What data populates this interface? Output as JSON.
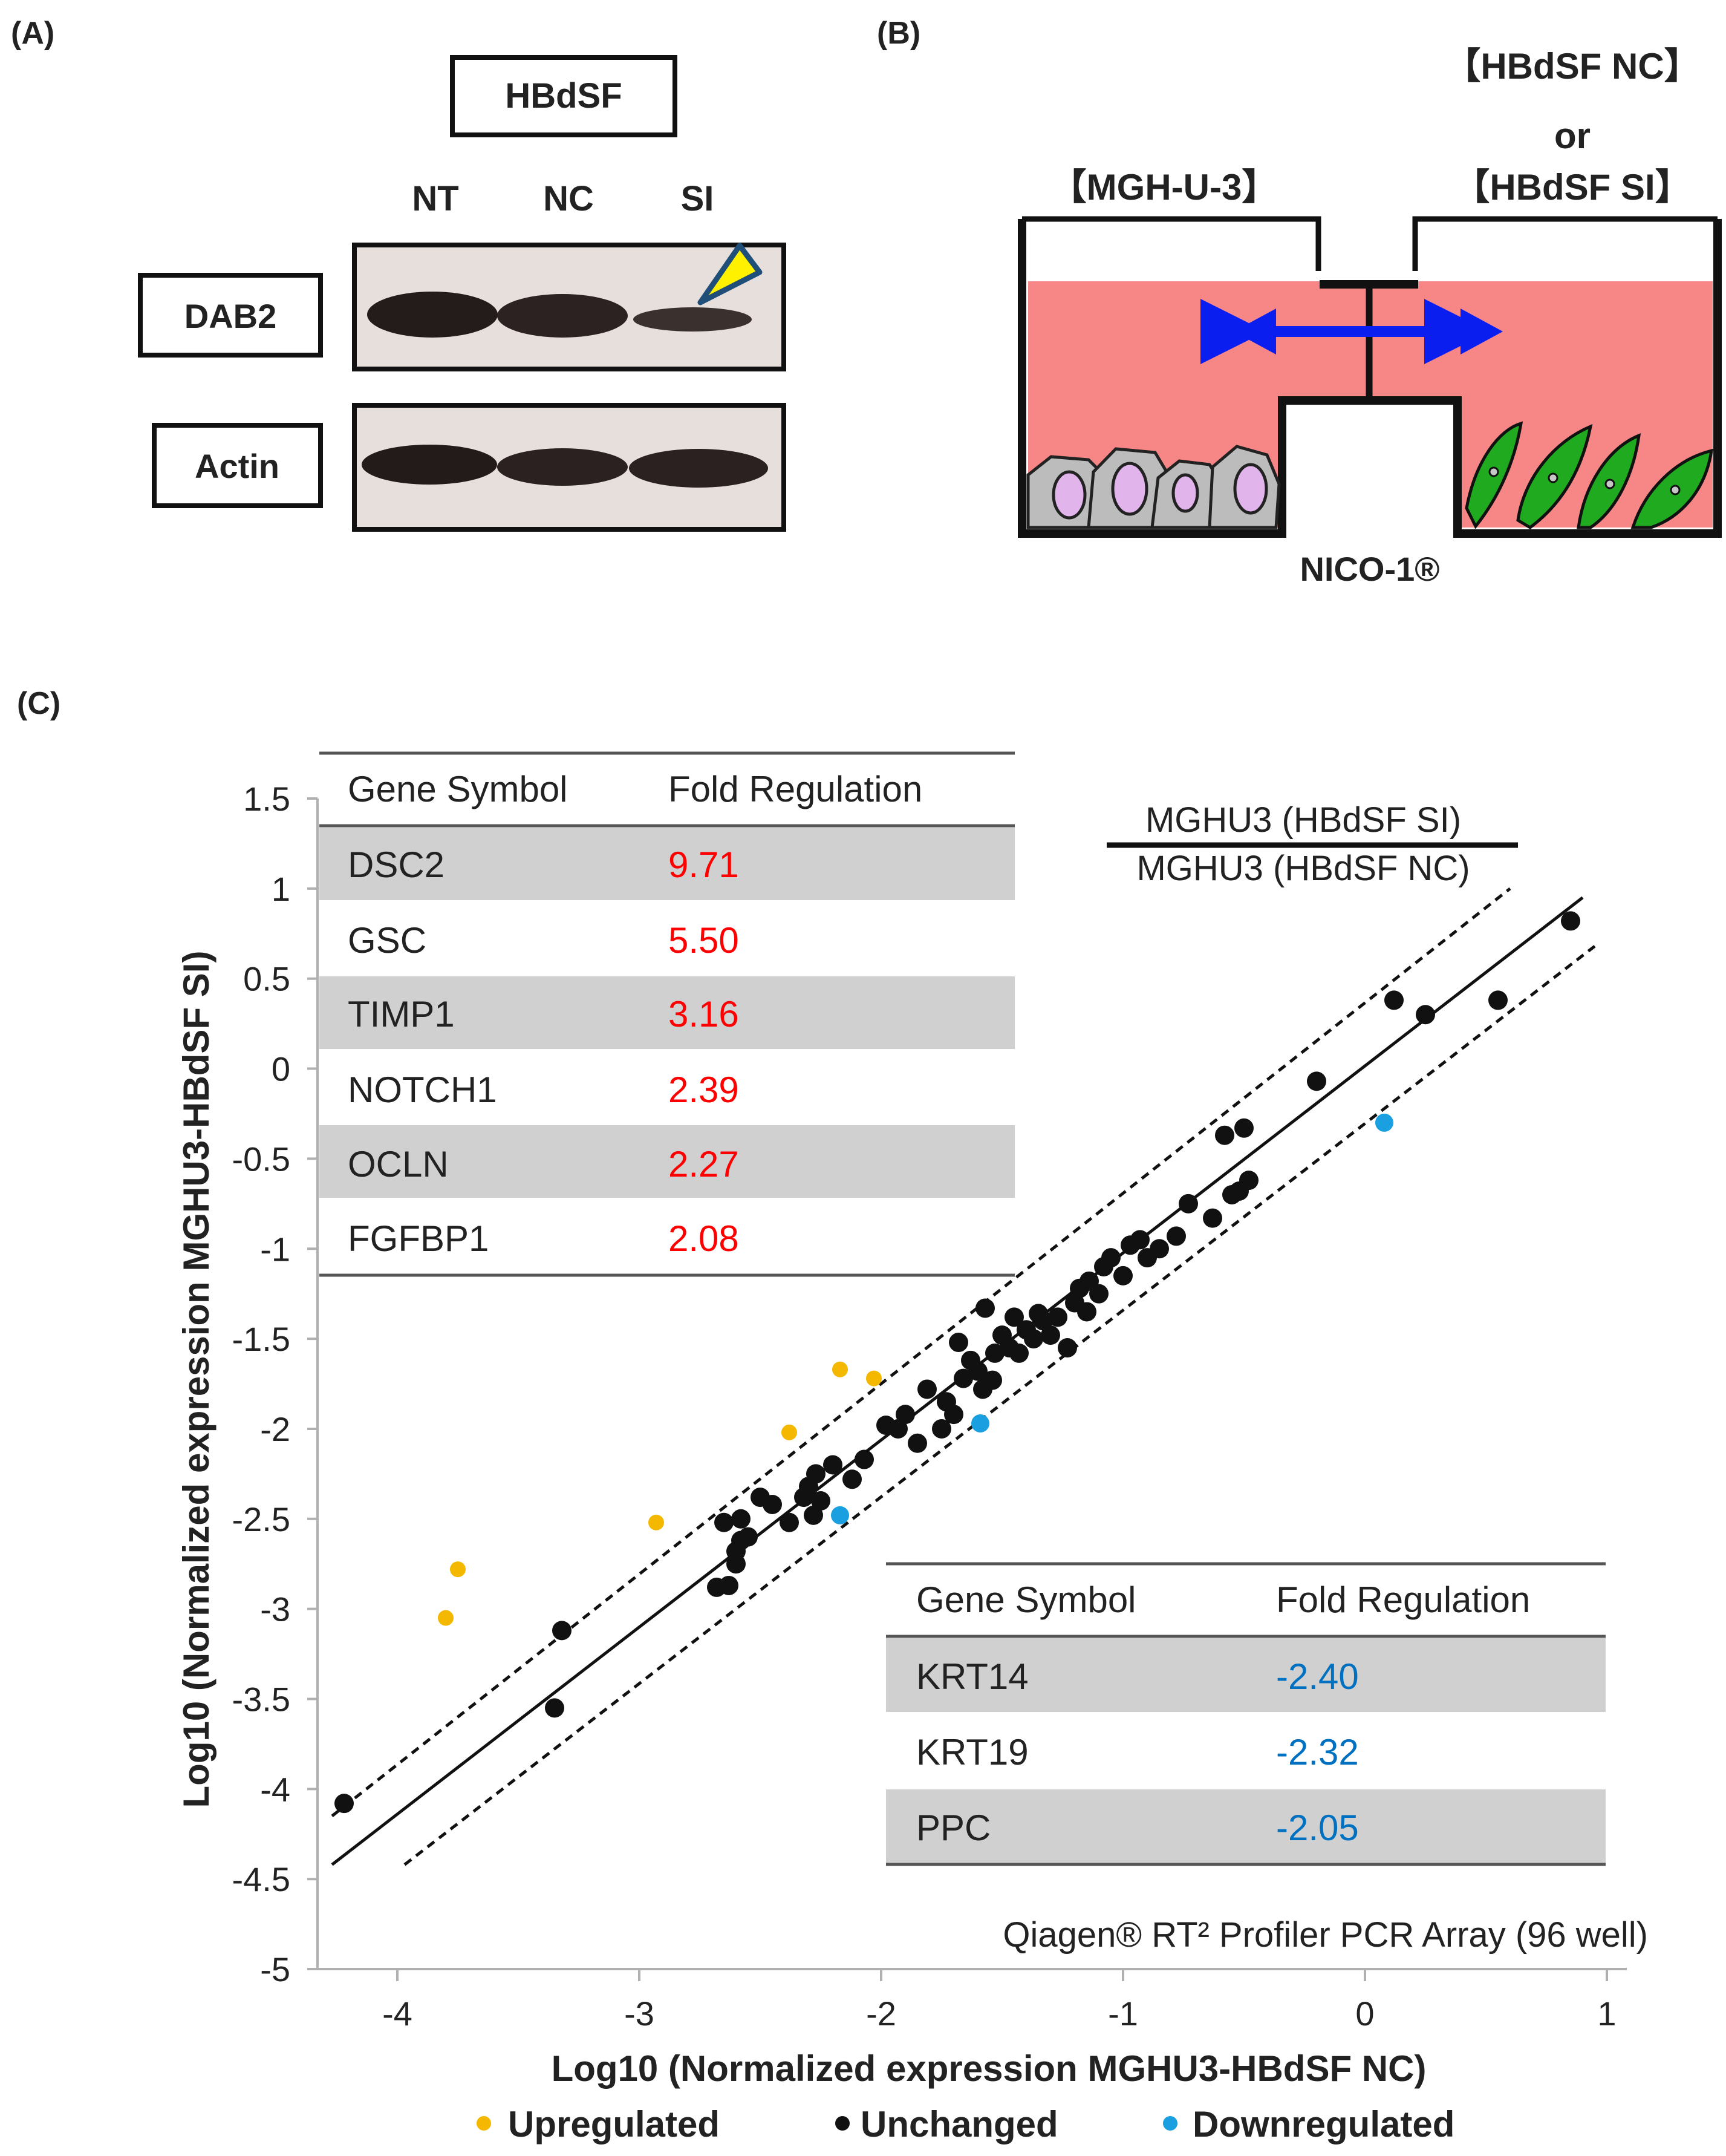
{
  "panel_a": {
    "label": "(A)",
    "cell_line": "HBdSF",
    "lanes": [
      "NT",
      "NC",
      "SI"
    ],
    "blot_dab2_label": "DAB2",
    "blot_actin_label": "Actin"
  },
  "panel_b": {
    "label": "(B)",
    "left_chamber_label": "【MGH-U-3】",
    "right_chamber_label_top": "【HBdSF NC】",
    "right_chamber_label_or": "or",
    "right_chamber_label_bottom": "【HBdSF SI】",
    "device_label": "NICO-1®",
    "colors": {
      "medium": "#f78787",
      "arrow": "#0a1ef0",
      "left_cells": "#bcbcbc",
      "left_nuclei": "#e2b4ec",
      "right_cells": "#1faa1f"
    }
  },
  "panel_c": {
    "label": "(C)",
    "ratio_numerator": "MGHU3 (HBdSF SI)",
    "ratio_denominator": "MGHU3 (HBdSF NC)",
    "array_note": "Qiagen® RT² Profiler PCR Array (96 well)",
    "up_table": {
      "header_gene": "Gene Symbol",
      "header_fold": "Fold Regulation",
      "rows": [
        {
          "gene": "DSC2",
          "fold": "9.71"
        },
        {
          "gene": "GSC",
          "fold": "5.50"
        },
        {
          "gene": "TIMP1",
          "fold": "3.16"
        },
        {
          "gene": "NOTCH1",
          "fold": "2.39"
        },
        {
          "gene": "OCLN",
          "fold": "2.27"
        },
        {
          "gene": "FGFBP1",
          "fold": "2.08"
        }
      ]
    },
    "down_table": {
      "header_gene": "Gene Symbol",
      "header_fold": "Fold Regulation",
      "rows": [
        {
          "gene": "KRT14",
          "fold": "-2.40"
        },
        {
          "gene": "KRT19",
          "fold": "-2.32"
        },
        {
          "gene": "PPC",
          "fold": "-2.05"
        }
      ]
    },
    "colors": {
      "up": "#f5b800",
      "unchanged": "#111111",
      "down": "#1aa0e0",
      "up_text": "#ff0000",
      "down_text": "#0070c0",
      "row_shade": "#d0d0d0"
    }
  },
  "chart_data": {
    "type": "scatter",
    "title": "",
    "xlabel": "Log10 (Normalized expression MGHU3-HBdSF  NC)",
    "ylabel": "Log10 (Normalized expression MGHU3-HBdSF  SI)",
    "xlim": [
      -4.4,
      1.0
    ],
    "ylim": [
      -5.0,
      1.5
    ],
    "x_ticks": [
      -4,
      -3,
      -2,
      -1,
      0,
      1
    ],
    "x_tick_labels": [
      "-4",
      "-3",
      "-2",
      "-1",
      "0",
      "1"
    ],
    "y_ticks": [
      1.5,
      1,
      0.5,
      0,
      -0.5,
      -1,
      -1.5,
      -2,
      -2.5,
      -3,
      -3.5,
      -4,
      -4.5,
      -5
    ],
    "y_tick_labels": [
      "1.5",
      "1",
      "0.5",
      "0",
      "-0.5",
      "-1",
      "-1.5",
      "-2",
      "-2.5",
      "-3",
      "-3.5",
      "-4",
      "-4.5",
      "-5"
    ],
    "legend_position": "bottom",
    "reference_lines": [
      {
        "name": "equal-expression",
        "style": "solid",
        "x": [
          -4.27,
          0.9
        ],
        "y": [
          -4.42,
          0.95
        ]
      },
      {
        "name": "upper-threshold",
        "style": "dashed",
        "x": [
          -4.27,
          0.6
        ],
        "y": [
          -4.15,
          1.0
        ]
      },
      {
        "name": "lower-threshold",
        "style": "dashed",
        "x": [
          -3.97,
          0.95
        ],
        "y": [
          -4.42,
          0.68
        ]
      }
    ],
    "series": [
      {
        "name": "Upregulated",
        "points": [
          [
            -3.8,
            -3.05
          ],
          [
            -3.75,
            -2.78
          ],
          [
            -2.93,
            -2.52
          ],
          [
            -2.38,
            -2.02
          ],
          [
            -2.17,
            -1.67
          ],
          [
            -2.03,
            -1.72
          ]
        ]
      },
      {
        "name": "Unchanged",
        "points": [
          [
            -4.22,
            -4.08
          ],
          [
            -3.32,
            -3.12
          ],
          [
            -3.35,
            -3.55
          ],
          [
            -2.68,
            -2.88
          ],
          [
            -2.63,
            -2.87
          ],
          [
            -2.6,
            -2.75
          ],
          [
            -2.6,
            -2.68
          ],
          [
            -2.58,
            -2.62
          ],
          [
            -2.65,
            -2.52
          ],
          [
            -2.58,
            -2.5
          ],
          [
            -2.55,
            -2.6
          ],
          [
            -2.5,
            -2.38
          ],
          [
            -2.45,
            -2.42
          ],
          [
            -2.38,
            -2.52
          ],
          [
            -2.32,
            -2.38
          ],
          [
            -2.28,
            -2.48
          ],
          [
            -2.25,
            -2.4
          ],
          [
            -2.3,
            -2.32
          ],
          [
            -2.27,
            -2.25
          ],
          [
            -2.2,
            -2.2
          ],
          [
            -2.12,
            -2.28
          ],
          [
            -2.07,
            -2.17
          ],
          [
            -1.98,
            -1.98
          ],
          [
            -1.93,
            -2.0
          ],
          [
            -1.9,
            -1.92
          ],
          [
            -1.85,
            -2.08
          ],
          [
            -1.81,
            -1.78
          ],
          [
            -1.75,
            -2.0
          ],
          [
            -1.73,
            -1.85
          ],
          [
            -1.7,
            -1.92
          ],
          [
            -1.66,
            -1.72
          ],
          [
            -1.63,
            -1.62
          ],
          [
            -1.6,
            -1.68
          ],
          [
            -1.58,
            -1.78
          ],
          [
            -1.54,
            -1.73
          ],
          [
            -1.53,
            -1.58
          ],
          [
            -1.5,
            -1.48
          ],
          [
            -1.47,
            -1.55
          ],
          [
            -1.43,
            -1.58
          ],
          [
            -1.4,
            -1.45
          ],
          [
            -1.37,
            -1.5
          ],
          [
            -1.33,
            -1.4
          ],
          [
            -1.3,
            -1.48
          ],
          [
            -1.27,
            -1.38
          ],
          [
            -1.23,
            -1.55
          ],
          [
            -1.2,
            -1.3
          ],
          [
            -1.18,
            -1.22
          ],
          [
            -1.14,
            -1.18
          ],
          [
            -1.1,
            -1.25
          ],
          [
            -1.08,
            -1.1
          ],
          [
            -1.05,
            -1.05
          ],
          [
            -1.0,
            -1.15
          ],
          [
            -0.97,
            -0.98
          ],
          [
            -0.93,
            -0.95
          ],
          [
            -0.9,
            -1.05
          ],
          [
            -0.85,
            -1.0
          ],
          [
            -0.78,
            -0.93
          ],
          [
            -0.73,
            -0.75
          ],
          [
            -0.63,
            -0.83
          ],
          [
            -0.58,
            -0.37
          ],
          [
            -0.55,
            -0.7
          ],
          [
            -0.52,
            -0.68
          ],
          [
            -0.5,
            -0.33
          ],
          [
            -0.48,
            -0.62
          ],
          [
            -0.2,
            -0.07
          ],
          [
            0.12,
            0.38
          ],
          [
            0.25,
            0.3
          ],
          [
            0.55,
            0.38
          ],
          [
            0.85,
            0.82
          ],
          [
            -1.57,
            -1.33
          ],
          [
            -1.68,
            -1.52
          ],
          [
            -1.45,
            -1.38
          ],
          [
            -1.35,
            -1.36
          ],
          [
            -1.15,
            -1.35
          ]
        ]
      },
      {
        "name": "Downregulated",
        "points": [
          [
            -2.17,
            -2.48
          ],
          [
            -1.59,
            -1.97
          ],
          [
            0.08,
            -0.3
          ]
        ]
      }
    ]
  }
}
